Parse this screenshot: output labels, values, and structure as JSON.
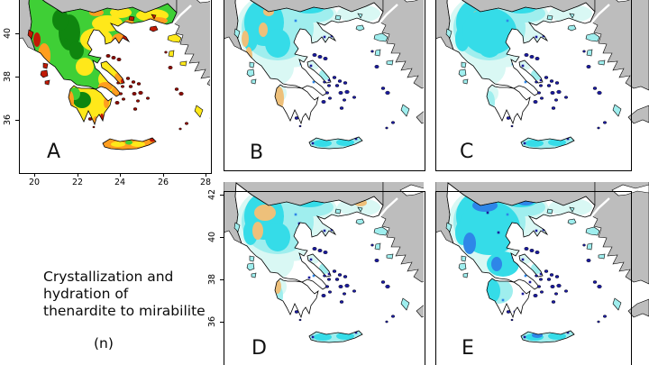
{
  "figure": {
    "caption": {
      "lines": [
        "Crystallization and",
        "hydration of",
        "thenardite to mirabilite"
      ],
      "unit_label": "(n)"
    },
    "panels": [
      {
        "letter": "A"
      },
      {
        "letter": "B"
      },
      {
        "letter": "C"
      },
      {
        "letter": "D"
      },
      {
        "letter": "E"
      }
    ],
    "axis": {
      "a_x_ticks": [
        "20",
        "22",
        "24",
        "26",
        "28"
      ],
      "a_y_ticks": [
        "40",
        "38",
        "36"
      ],
      "d_y_ticks": [
        "42",
        "40",
        "38",
        "36"
      ]
    },
    "colors": {
      "neighbor_land": "#bdbdbd",
      "sea": "#ffffff",
      "outline": "#000000",
      "heat": {
        "green": "#3fcf36",
        "dark_green": "#0f860f",
        "yellow": "#ffe81a",
        "orange": "#ff9e1f",
        "red": "#c11a05",
        "dark_red": "#8a0a00"
      },
      "cool": {
        "pale_cyan": "#d9f8f4",
        "light_cyan": "#9feeee",
        "cyan": "#35dce8",
        "blue": "#2e86e8",
        "navy": "#1a1a9c",
        "tan": "#eec07a"
      }
    }
  }
}
